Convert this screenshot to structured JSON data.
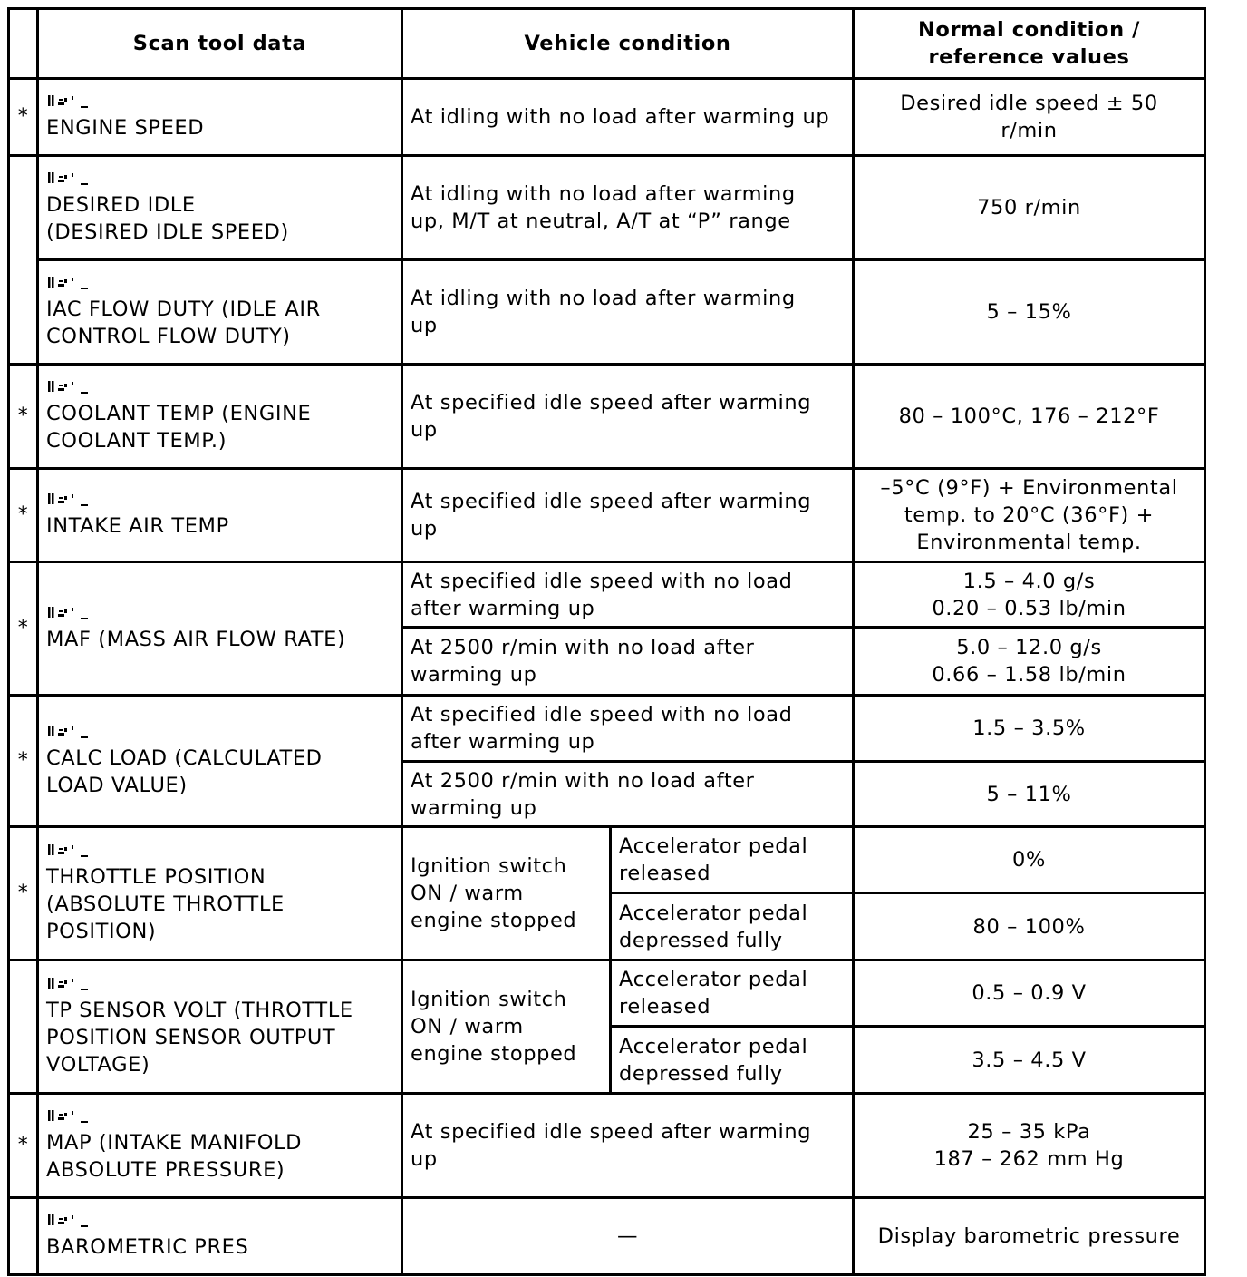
{
  "header": {
    "mark": "",
    "scan_tool_data": "Scan tool data",
    "vehicle_condition": "Vehicle condition",
    "normal_condition": "Normal condition /\nreference values"
  },
  "rows": [
    {
      "mark": "*",
      "name": "ENGINE SPEED",
      "condition": "At idling with no load after warming up",
      "value": "Desired idle speed ± 50\nr/min"
    },
    {
      "mark": "",
      "name": "DESIRED IDLE\n(DESIRED IDLE SPEED)",
      "condition": "At idling with no load after warming\nup, M/T at neutral, A/T at “P” range",
      "value": "750 r/min"
    },
    {
      "name": "IAC FLOW DUTY (IDLE AIR\nCONTROL FLOW DUTY)",
      "condition": "At idling with no load after warming\nup",
      "value": "5 – 15%"
    },
    {
      "mark": "*",
      "name": "COOLANT TEMP (ENGINE\nCOOLANT TEMP.)",
      "condition": "At specified idle speed after warming\nup",
      "value": "80 – 100°C, 176 – 212°F"
    },
    {
      "mark": "*",
      "name": "INTAKE AIR TEMP",
      "condition": "At specified idle speed after warming\nup",
      "value": "–5°C (9°F) + Environmental\ntemp. to 20°C (36°F) +\nEnvironmental temp."
    },
    {
      "mark": "*",
      "name": "MAF (MASS AIR FLOW RATE)",
      "conditions": [
        {
          "condition": "At specified idle speed with no load\nafter warming up",
          "value": "1.5 – 4.0 g/s\n0.20 – 0.53 lb/min"
        },
        {
          "condition": "At 2500 r/min with no load after\nwarming up",
          "value": "5.0 – 12.0 g/s\n0.66 – 1.58 lb/min"
        }
      ]
    },
    {
      "mark": "*",
      "name": "CALC LOAD (CALCULATED\nLOAD VALUE)",
      "conditions": [
        {
          "condition": "At specified idle speed with no load\nafter warming up",
          "value": "1.5 – 3.5%"
        },
        {
          "condition": "At 2500 r/min with no load after\nwarming up",
          "value": "5 – 11%"
        }
      ]
    },
    {
      "mark": "*",
      "name": "THROTTLE POSITION\n(ABSOLUTE THROTTLE\nPOSITION)",
      "condition": "Ignition switch\nON / warm\nengine stopped",
      "conditions": [
        {
          "condition": "Accelerator pedal\nreleased",
          "value": "0%"
        },
        {
          "condition": "Accelerator pedal\ndepressed fully",
          "value": "80 – 100%"
        }
      ]
    },
    {
      "mark": "",
      "name": "TP SENSOR VOLT (THROTTLE\nPOSITION SENSOR OUTPUT\nVOLTAGE)",
      "condition": "Ignition switch\nON / warm\nengine stopped",
      "conditions": [
        {
          "condition": "Accelerator pedal\nreleased",
          "value": "0.5 – 0.9 V"
        },
        {
          "condition": "Accelerator pedal\ndepressed fully",
          "value": "3.5 – 4.5 V"
        }
      ]
    },
    {
      "mark": "*",
      "name": "MAP (INTAKE MANIFOLD\nABSOLUTE PRESSURE)",
      "condition": "At specified idle speed after warming\nup",
      "value": "25 – 35 kPa\n187 – 262 mm Hg"
    },
    {
      "mark": "",
      "name": "BAROMETRIC PRES",
      "condition": "—",
      "value": "Display barometric pressure"
    }
  ],
  "icons": {
    "name_marker": "scan-tool-item-icon"
  }
}
